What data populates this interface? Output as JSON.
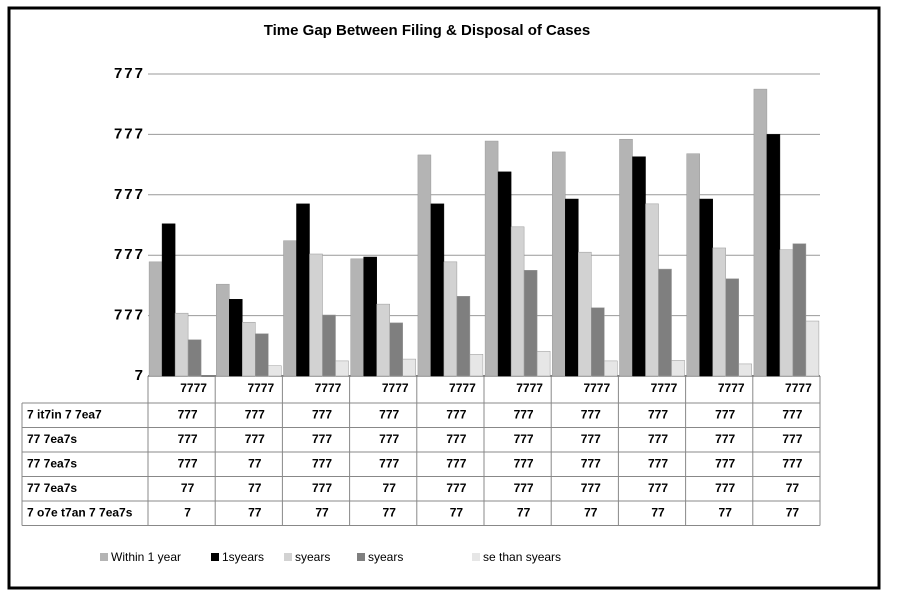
{
  "chart_data": {
    "type": "bar",
    "title": "Time Gap Between Filing & Disposal of Cases",
    "categories": [
      "7777",
      "7777",
      "7777",
      "7777",
      "7777",
      "7777",
      "7777",
      "7777",
      "7777",
      "7777"
    ],
    "series": [
      {
        "name": "Within 1 year",
        "color": "#b4b4b4",
        "values": [
          1.89,
          1.52,
          2.24,
          1.94,
          3.66,
          3.89,
          3.71,
          3.92,
          3.68,
          4.75
        ]
      },
      {
        "name": "1syears",
        "color": "#000000",
        "values": [
          2.52,
          1.27,
          2.85,
          1.97,
          2.85,
          3.38,
          2.93,
          3.63,
          2.93,
          4.0
        ]
      },
      {
        "name": "syears",
        "color": "#d2d2d2",
        "values": [
          1.04,
          0.89,
          2.02,
          1.19,
          1.89,
          2.47,
          2.05,
          2.85,
          2.12,
          2.09
        ]
      },
      {
        "name": "syears",
        "color": "#7f7f7f",
        "values": [
          0.6,
          0.7,
          1.01,
          0.88,
          1.32,
          1.75,
          1.13,
          1.77,
          1.61,
          2.19
        ]
      },
      {
        "name": "se than syears",
        "color": "#e6e6e6",
        "values": [
          0,
          0.17,
          0.25,
          0.28,
          0.36,
          0.41,
          0.25,
          0.26,
          0.2,
          0.91
        ]
      }
    ],
    "ylim": [
      0,
      5
    ],
    "yticks": [
      {
        "value": 0,
        "label": "7"
      },
      {
        "value": 1,
        "label": "777"
      },
      {
        "value": 2,
        "label": "777"
      },
      {
        "value": 3,
        "label": "777"
      },
      {
        "value": 4,
        "label": "777"
      },
      {
        "value": 5,
        "label": "777"
      }
    ],
    "grid": true,
    "legend": "bottom",
    "table": {
      "row_labels": [
        "7 it7in 7 7ea7",
        "77 7ea7s",
        "77 7ea7s",
        "77 7ea7s",
        "7 o7e t7an 7 7ea7s"
      ],
      "cells": [
        [
          "777",
          "777",
          "777",
          "777",
          "777",
          "777",
          "777",
          "777",
          "777",
          "777"
        ],
        [
          "777",
          "777",
          "777",
          "777",
          "777",
          "777",
          "777",
          "777",
          "777",
          "777"
        ],
        [
          "777",
          "77",
          "777",
          "777",
          "777",
          "777",
          "777",
          "777",
          "777",
          "777"
        ],
        [
          "77",
          "77",
          "777",
          "77",
          "777",
          "777",
          "777",
          "777",
          "777",
          "77"
        ],
        [
          "7",
          "77",
          "77",
          "77",
          "77",
          "77",
          "77",
          "77",
          "77",
          "77"
        ]
      ]
    }
  }
}
